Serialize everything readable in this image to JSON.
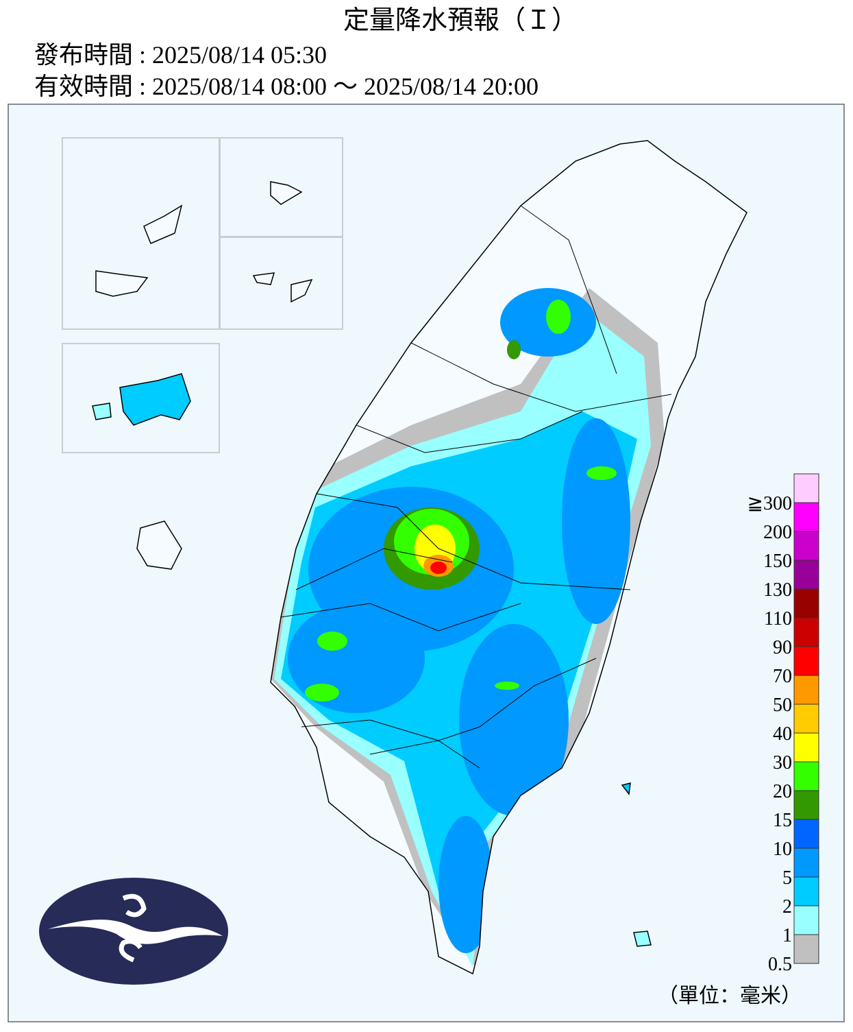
{
  "header": {
    "title": "定量降水預報（Ｉ）",
    "issued": "發布時間 : 2025/08/14 05:30",
    "valid": "有效時間 : 2025/08/14 08:00 ～ 2025/08/14 20:00"
  },
  "legend": {
    "labels": [
      "0.5",
      "1",
      "2",
      "5",
      "10",
      "15",
      "20",
      "30",
      "40",
      "50",
      "70",
      "90",
      "110",
      "130",
      "150",
      "200",
      "≧300"
    ],
    "colors": [
      "#c0c0c0",
      "#99ffff",
      "#00ccff",
      "#0099ff",
      "#0066ff",
      "#339900",
      "#33ff00",
      "#ffff00",
      "#ffcc00",
      "#ff9900",
      "#ff0000",
      "#cc0000",
      "#990000",
      "#990099",
      "#cc00cc",
      "#ff00ff",
      "#ffccff"
    ],
    "unit": "（單位：毫米）"
  }
}
